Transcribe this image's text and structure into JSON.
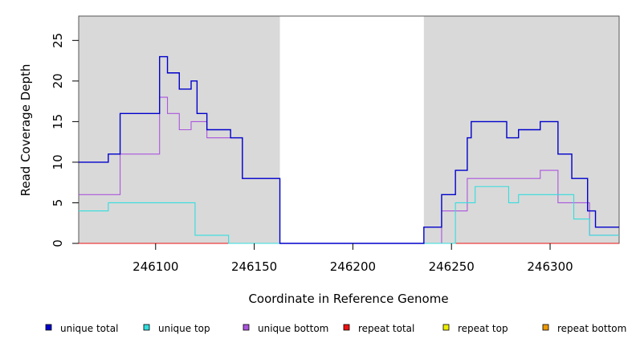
{
  "chart_data": {
    "type": "line",
    "title": "",
    "xlabel": "Coordinate in Reference Genome",
    "ylabel": "Read Coverage Depth",
    "xlim": [
      246061,
      246335
    ],
    "ylim": [
      0,
      28
    ],
    "x_ticks": [
      246100,
      246150,
      246200,
      246250,
      246300
    ],
    "y_ticks": [
      0,
      5,
      10,
      15,
      20,
      25
    ],
    "shaded_regions": [
      [
        246061,
        246163
      ],
      [
        246236,
        246335
      ]
    ],
    "shade_color": "#d9d9d9",
    "grid": false,
    "legend_position": "bottom",
    "series": [
      {
        "name": "unique total",
        "color": "#0000cc",
        "x": [
          246061,
          246076,
          246082,
          246102,
          246106,
          246112,
          246118,
          246121,
          246126,
          246138,
          246144,
          246163,
          246236,
          246245,
          246252,
          246258,
          246260,
          246278,
          246284,
          246295,
          246304,
          246311,
          246319,
          246323,
          246335
        ],
        "y": [
          10,
          11,
          16,
          23,
          21,
          19,
          20,
          16,
          14,
          13,
          8,
          0,
          2,
          6,
          9,
          13,
          15,
          13,
          14,
          15,
          11,
          8,
          4,
          2,
          2
        ]
      },
      {
        "name": "unique top",
        "color": "#33dddd",
        "x": [
          246061,
          246076,
          246120,
          246137,
          246163,
          246236,
          246252,
          246262,
          246279,
          246284,
          246312,
          246320,
          246335
        ],
        "y": [
          4,
          5,
          1,
          0,
          0,
          0,
          5,
          7,
          5,
          6,
          3,
          1,
          1
        ]
      },
      {
        "name": "unique bottom",
        "color": "#aa55dd",
        "x": [
          246061,
          246082,
          246102,
          246106,
          246112,
          246118,
          246126,
          246138,
          246144,
          246163,
          246236,
          246245,
          246258,
          246295,
          246304,
          246320,
          246335
        ],
        "y": [
          6,
          11,
          18,
          16,
          14,
          15,
          13,
          13,
          8,
          0,
          0,
          4,
          8,
          9,
          5,
          1,
          1
        ]
      },
      {
        "name": "repeat total",
        "color": "#ee1111",
        "x": [
          246061,
          246335
        ],
        "y": [
          0,
          0
        ]
      },
      {
        "name": "repeat top",
        "color": "#eeee00",
        "x": [
          246061,
          246335
        ],
        "y": [
          0,
          0
        ]
      },
      {
        "name": "repeat bottom",
        "color": "#ee9900",
        "x": [
          246061,
          246335
        ],
        "y": [
          0,
          0
        ]
      }
    ]
  }
}
